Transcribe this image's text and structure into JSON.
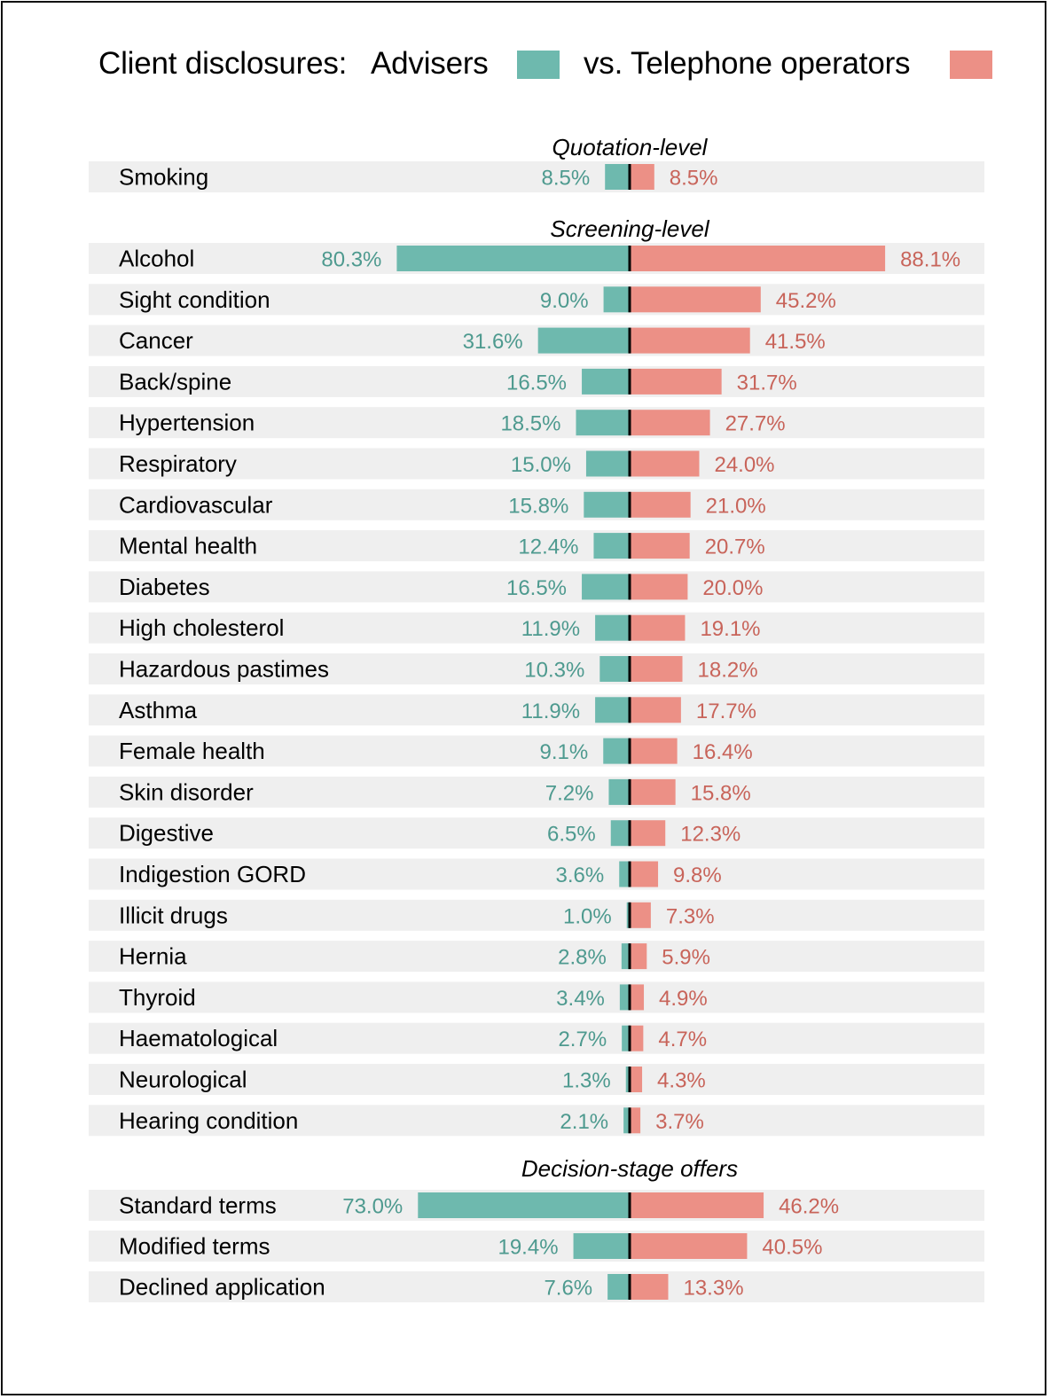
{
  "legend": {
    "prefix": "Client disclosures:",
    "series_a": "Advisers",
    "series_b": "vs. Telephone operators"
  },
  "colors": {
    "advisers_bar": "#6eb9ae",
    "advisers_text": "#4e9a8f",
    "operators_bar": "#ec9086",
    "operators_text": "#c8645a",
    "row_bg": "#efefef",
    "center_line": "#000000"
  },
  "chart_data": {
    "type": "bar",
    "orientation": "horizontal-diverging",
    "title": "Client disclosures: Advisers vs. Telephone operators",
    "xlabel": "",
    "ylabel": "",
    "units": "%",
    "grid": false,
    "legend_position": "top",
    "series": [
      {
        "name": "Advisers",
        "side": "left"
      },
      {
        "name": "Telephone operators",
        "side": "right"
      }
    ],
    "sections": [
      {
        "title": "Quotation-level",
        "rows": [
          {
            "label": "Smoking",
            "advisers": 8.5,
            "operators": 8.5
          }
        ]
      },
      {
        "title": "Screening-level",
        "rows": [
          {
            "label": "Alcohol",
            "advisers": 80.3,
            "operators": 88.1
          },
          {
            "label": "Sight condition",
            "advisers": 9.0,
            "operators": 45.2
          },
          {
            "label": "Cancer",
            "advisers": 31.6,
            "operators": 41.5
          },
          {
            "label": "Back/spine",
            "advisers": 16.5,
            "operators": 31.7
          },
          {
            "label": "Hypertension",
            "advisers": 18.5,
            "operators": 27.7
          },
          {
            "label": "Respiratory",
            "advisers": 15.0,
            "operators": 24.0
          },
          {
            "label": "Cardiovascular",
            "advisers": 15.8,
            "operators": 21.0
          },
          {
            "label": "Mental health",
            "advisers": 12.4,
            "operators": 20.7
          },
          {
            "label": "Diabetes",
            "advisers": 16.5,
            "operators": 20.0
          },
          {
            "label": "High cholesterol",
            "advisers": 11.9,
            "operators": 19.1
          },
          {
            "label": "Hazardous pastimes",
            "advisers": 10.3,
            "operators": 18.2
          },
          {
            "label": "Asthma",
            "advisers": 11.9,
            "operators": 17.7
          },
          {
            "label": "Female health",
            "advisers": 9.1,
            "operators": 16.4
          },
          {
            "label": "Skin disorder",
            "advisers": 7.2,
            "operators": 15.8
          },
          {
            "label": "Digestive",
            "advisers": 6.5,
            "operators": 12.3
          },
          {
            "label": "Indigestion GORD",
            "advisers": 3.6,
            "operators": 9.8
          },
          {
            "label": "Illicit drugs",
            "advisers": 1.0,
            "operators": 7.3
          },
          {
            "label": "Hernia",
            "advisers": 2.8,
            "operators": 5.9
          },
          {
            "label": "Thyroid",
            "advisers": 3.4,
            "operators": 4.9
          },
          {
            "label": "Haematological",
            "advisers": 2.7,
            "operators": 4.7
          },
          {
            "label": "Neurological",
            "advisers": 1.3,
            "operators": 4.3
          },
          {
            "label": "Hearing condition",
            "advisers": 2.1,
            "operators": 3.7
          }
        ]
      },
      {
        "title": "Decision-stage offers",
        "rows": [
          {
            "label": "Standard terms",
            "advisers": 73.0,
            "operators": 46.2
          },
          {
            "label": "Modified terms",
            "advisers": 19.4,
            "operators": 40.5
          },
          {
            "label": "Declined application",
            "advisers": 7.6,
            "operators": 13.3
          }
        ]
      }
    ]
  }
}
